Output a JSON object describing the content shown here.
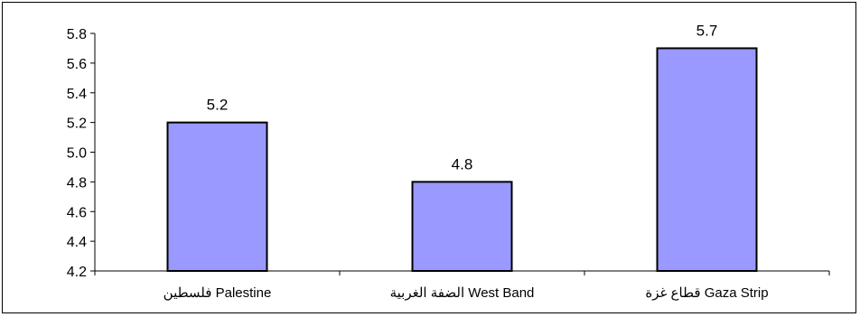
{
  "chart_data": {
    "type": "bar",
    "categories": [
      "فلسطين Palestine",
      "الضفة الغربية  West Band",
      "قطاع غزة Gaza Strip"
    ],
    "values": [
      5.2,
      4.8,
      5.7
    ],
    "data_labels": [
      "5.2",
      "4.8",
      "5.7"
    ],
    "ylim": [
      4.2,
      5.8
    ],
    "yticks": [
      4.2,
      4.4,
      4.6,
      4.8,
      5.0,
      5.2,
      5.4,
      5.6,
      5.8
    ],
    "ytick_labels": [
      "4.2",
      "4.4",
      "4.6",
      "4.8",
      "5.0",
      "5.2",
      "5.4",
      "5.6",
      "5.8"
    ],
    "grid": false,
    "bar_color": "#9999ff",
    "bar_edge_color": "#000000"
  }
}
